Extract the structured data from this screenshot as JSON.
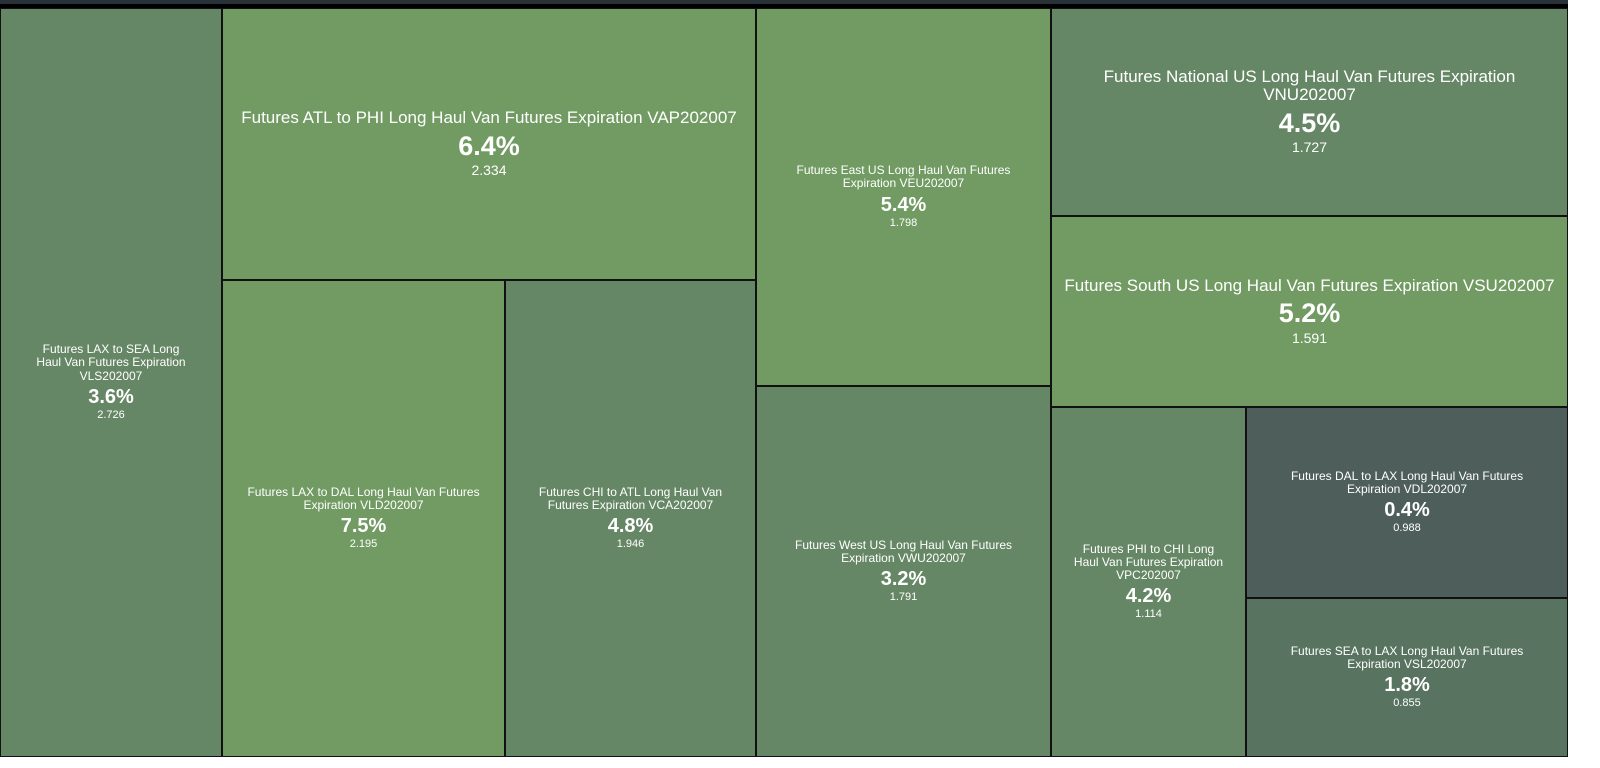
{
  "chart_data": {
    "type": "treemap",
    "title": "",
    "items": [
      {
        "id": "vls",
        "name": "Futures LAX to SEA Long Haul Van Futures Expiration VLS202007",
        "change": "3.6%",
        "value": "2.726",
        "color": "#668765"
      },
      {
        "id": "vap",
        "name": "Futures ATL to PHI Long Haul Van Futures Expiration VAP202007",
        "change": "6.4%",
        "value": "2.334",
        "color": "#719b63"
      },
      {
        "id": "vld",
        "name": "Futures LAX to DAL Long Haul Van Futures Expiration VLD202007",
        "change": "7.5%",
        "value": "2.195",
        "color": "#719b63"
      },
      {
        "id": "vca",
        "name": "Futures CHI to ATL Long Haul Van Futures Expiration VCA202007",
        "change": "4.8%",
        "value": "1.946",
        "color": "#668765"
      },
      {
        "id": "veu",
        "name": "Futures East US Long Haul Van Futures Expiration VEU202007",
        "change": "5.4%",
        "value": "1.798",
        "color": "#719b63"
      },
      {
        "id": "vwu",
        "name": "Futures West US Long Haul Van Futures Expiration VWU202007",
        "change": "3.2%",
        "value": "1.791",
        "color": "#668765"
      },
      {
        "id": "vnu",
        "name": "Futures National US Long Haul Van Futures Expiration VNU202007",
        "change": "4.5%",
        "value": "1.727",
        "color": "#668765"
      },
      {
        "id": "vsu",
        "name": "Futures South US Long Haul Van Futures Expiration VSU202007",
        "change": "5.2%",
        "value": "1.591",
        "color": "#719b63"
      },
      {
        "id": "vpc",
        "name": "Futures PHI to CHI Long Haul Van Futures Expiration VPC202007",
        "change": "4.2%",
        "value": "1.114",
        "color": "#668765"
      },
      {
        "id": "vdl",
        "name": "Futures DAL to LAX Long Haul Van Futures Expiration VDL202007",
        "change": "0.4%",
        "value": "0.988",
        "color": "#4e5f5b"
      },
      {
        "id": "vsl",
        "name": "Futures SEA to LAX Long Haul Van Futures Expiration VSL202007",
        "change": "1.8%",
        "value": "0.855",
        "color": "#58735f"
      }
    ]
  }
}
